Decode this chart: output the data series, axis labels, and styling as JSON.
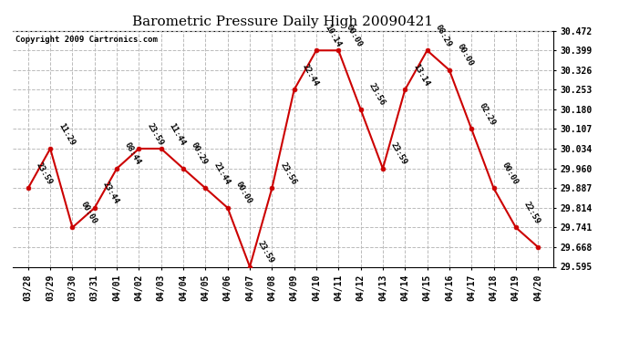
{
  "title": "Barometric Pressure Daily High 20090421",
  "copyright": "Copyright 2009 Cartronics.com",
  "background_color": "#ffffff",
  "plot_bg_color": "#ffffff",
  "grid_color": "#bbbbbb",
  "line_color": "#cc0000",
  "marker_color": "#cc0000",
  "text_color": "#000000",
  "x_labels": [
    "03/28",
    "03/29",
    "03/30",
    "03/31",
    "04/01",
    "04/02",
    "04/03",
    "04/04",
    "04/05",
    "04/06",
    "04/07",
    "04/08",
    "04/09",
    "04/10",
    "04/11",
    "04/12",
    "04/13",
    "04/14",
    "04/15",
    "04/16",
    "04/17",
    "04/18",
    "04/19",
    "04/20"
  ],
  "y_values": [
    29.887,
    30.034,
    29.741,
    29.814,
    29.96,
    30.034,
    30.034,
    29.96,
    29.887,
    29.814,
    29.595,
    29.887,
    30.253,
    30.399,
    30.399,
    30.18,
    29.96,
    30.253,
    30.399,
    30.326,
    30.107,
    29.887,
    29.741,
    29.668
  ],
  "point_labels": [
    "23:59",
    "11:29",
    "00:00",
    "23:44",
    "08:44",
    "23:59",
    "11:44",
    "00:29",
    "21:44",
    "00:00",
    "23:59",
    "23:56",
    "22:44",
    "10:14",
    "00:00",
    "23:56",
    "23:59",
    "13:14",
    "08:29",
    "00:00",
    "02:29",
    "00:00",
    "22:59",
    ""
  ],
  "ylim_min": 29.595,
  "ylim_max": 30.472,
  "yticks": [
    29.595,
    29.668,
    29.741,
    29.814,
    29.887,
    29.96,
    30.034,
    30.107,
    30.18,
    30.253,
    30.326,
    30.399,
    30.472
  ]
}
